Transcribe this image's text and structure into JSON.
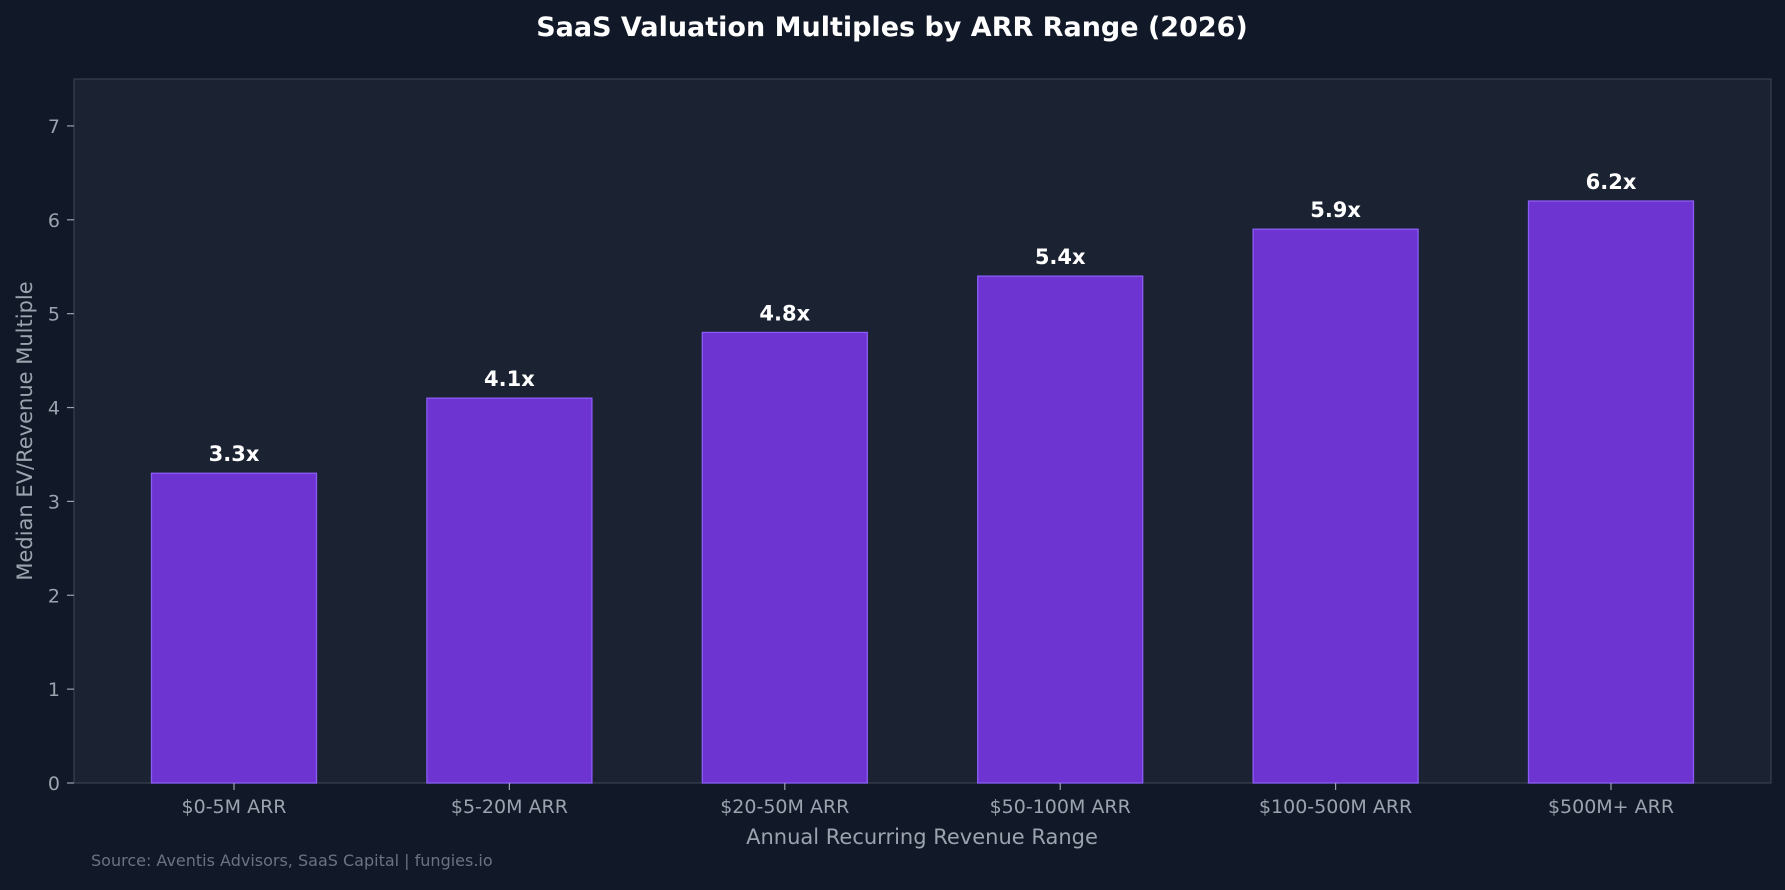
{
  "chart_data": {
    "type": "bar",
    "title": "SaaS Valuation Multiples by ARR Range (2026)",
    "xlabel": "Annual Recurring Revenue Range",
    "ylabel": "Median EV/Revenue Multiple",
    "categories": [
      "$0-5M ARR",
      "$5-20M ARR",
      "$20-50M ARR",
      "$50-100M ARR",
      "$100-500M ARR",
      "$500M+ ARR"
    ],
    "values": [
      3.3,
      4.1,
      4.8,
      5.4,
      5.9,
      6.2
    ],
    "value_labels": [
      "3.3x",
      "4.1x",
      "4.8x",
      "5.4x",
      "5.9x",
      "6.2x"
    ],
    "ylim": [
      0,
      7.5
    ],
    "yticks": [
      0,
      1,
      2,
      3,
      4,
      5,
      6,
      7
    ],
    "grid": false,
    "legend": "none",
    "source": "Source: Aventis Advisors, SaaS Capital | fungies.io"
  },
  "colors": {
    "background": "#111827",
    "plot_background": "#1b2333",
    "bar_fill": "#6d34d2",
    "bar_edge": "#8b5cf6",
    "title": "#ffffff",
    "value_label": "#ffffff",
    "axis_text": "#9ca3af",
    "source_text": "#6b7280",
    "spine": "#374151"
  }
}
